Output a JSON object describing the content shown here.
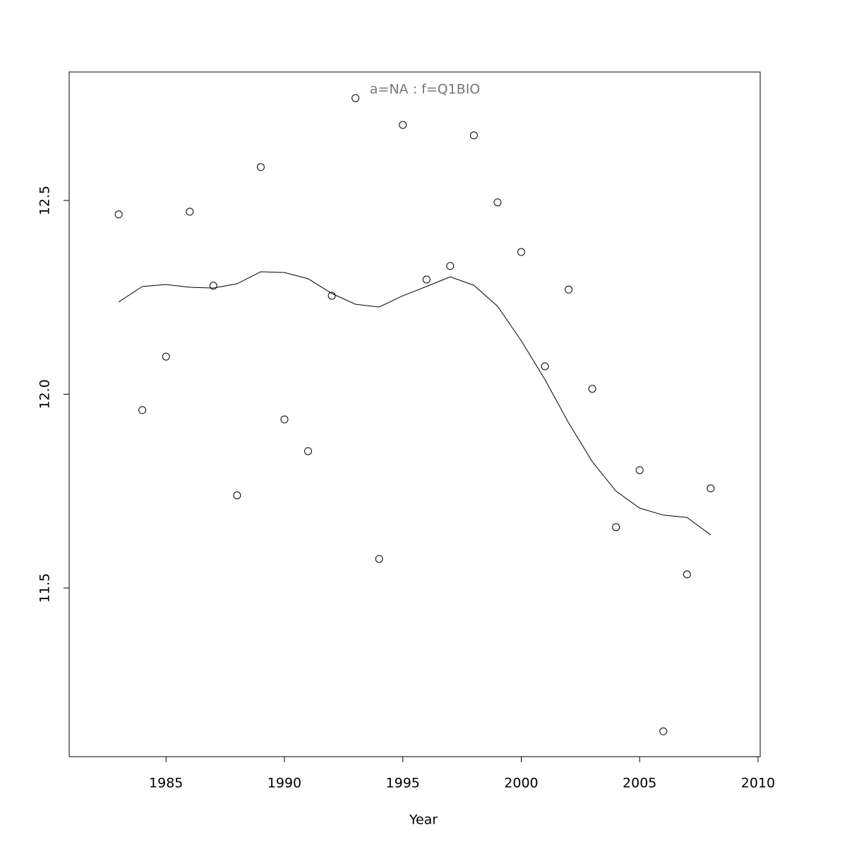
{
  "chart_data": {
    "type": "scatter",
    "title": "a=NA  :  f=Q1BIO",
    "x_label": "Year",
    "x": [
      1983,
      1984,
      1985,
      1986,
      1987,
      1988,
      1989,
      1990,
      1991,
      1992,
      1993,
      1994,
      1995,
      1996,
      1997,
      1998,
      1999,
      2000,
      2001,
      2002,
      2003,
      2004,
      2005,
      2006,
      2007,
      2008
    ],
    "series": [
      {
        "mode": "markers",
        "color": "#000000",
        "values": [
          12.464,
          11.959,
          12.097,
          12.471,
          12.28,
          11.739,
          12.586,
          11.935,
          11.853,
          12.254,
          12.764,
          11.575,
          12.695,
          12.296,
          12.331,
          12.668,
          12.495,
          12.367,
          12.072,
          12.27,
          12.014,
          11.657,
          11.804,
          11.13,
          11.535,
          11.757
        ]
      },
      {
        "mode": "line",
        "color": "#000000",
        "values": [
          12.238,
          12.278,
          12.283,
          12.276,
          12.274,
          12.285,
          12.316,
          12.314,
          12.298,
          12.26,
          12.232,
          12.225,
          12.254,
          12.278,
          12.303,
          12.281,
          12.227,
          12.138,
          12.038,
          11.926,
          11.826,
          11.75,
          11.706,
          11.688,
          11.682,
          11.637
        ]
      }
    ],
    "xlim": [
      1980.91,
      2010.09
    ],
    "xticks": [
      1985,
      1990,
      1995,
      2000,
      2005,
      2010
    ],
    "ylim": [
      11.0647,
      12.8315
    ],
    "yticks": [
      11.5,
      {
        "value": 12,
        "label": "12.0"
      },
      12.5
    ],
    "grid": false
  }
}
